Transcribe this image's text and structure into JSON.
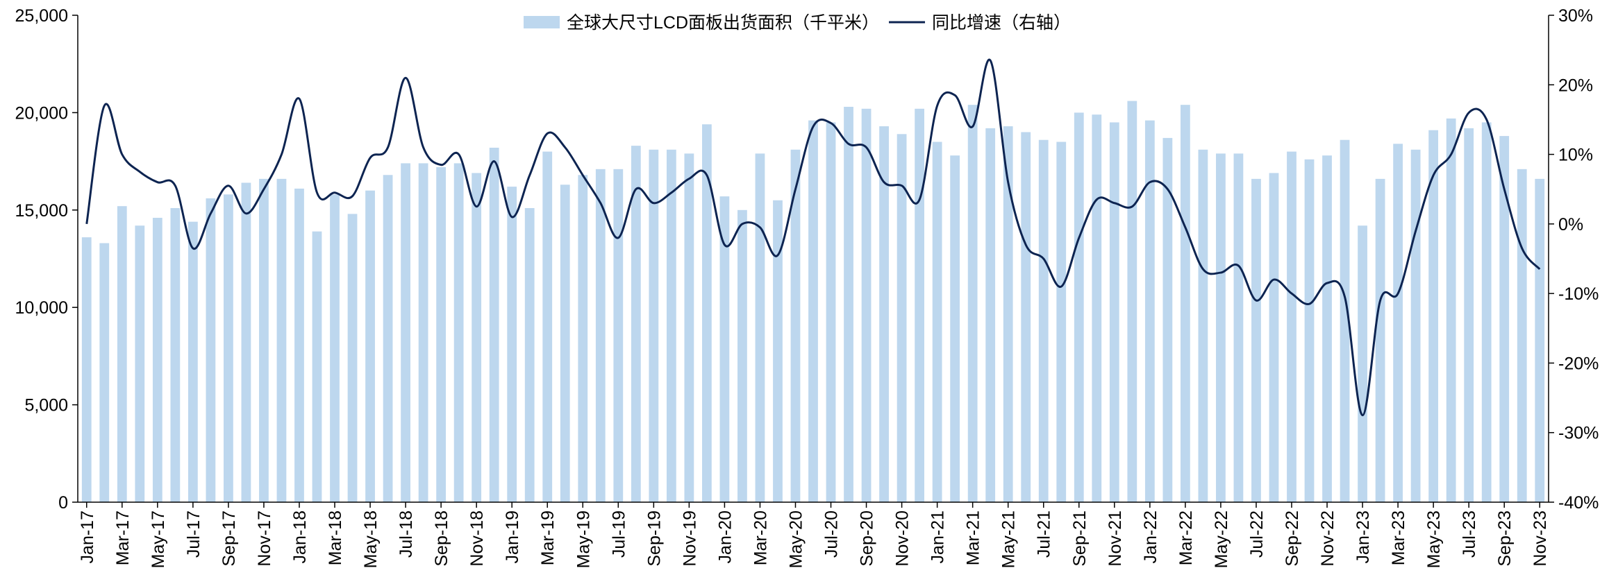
{
  "chart_data": {
    "type": "bar-line",
    "categories": [
      "Jan-17",
      null,
      "Mar-17",
      null,
      "May-17",
      null,
      "Jul-17",
      null,
      "Sep-17",
      null,
      "Nov-17",
      null,
      "Jan-18",
      null,
      "Mar-18",
      null,
      "May-18",
      null,
      "Jul-18",
      null,
      "Sep-18",
      null,
      "Nov-18",
      null,
      "Jan-19",
      null,
      "Mar-19",
      null,
      "May-19",
      null,
      "Jul-19",
      null,
      "Sep-19",
      null,
      "Nov-19",
      null,
      "Jan-20",
      null,
      "Mar-20",
      null,
      "May-20",
      null,
      "Jul-20",
      null,
      "Sep-20",
      null,
      "Nov-20",
      null,
      "Jan-21",
      null,
      "Mar-21",
      null,
      "May-21",
      null,
      "Jul-21",
      null,
      "Sep-21",
      null,
      "Nov-21",
      null,
      "Jan-22",
      null,
      "Mar-22",
      null,
      "May-22",
      null,
      "Jul-22",
      null,
      "Sep-22",
      null,
      "Nov-22",
      null,
      "Jan-23",
      null,
      "Mar-23",
      null,
      "May-23",
      null,
      "Jul-23",
      null,
      "Sep-23",
      null,
      "Nov-23"
    ],
    "series": [
      {
        "name": "全球大尺寸LCD面板出货面积（千平米）",
        "type": "bar",
        "color": "#bdd7ee",
        "values": [
          13600,
          13300,
          15200,
          14200,
          14600,
          15100,
          14400,
          15600,
          15800,
          16400,
          16600,
          16600,
          16100,
          13900,
          15800,
          14800,
          16000,
          16800,
          17400,
          17400,
          17200,
          17400,
          16900,
          18200,
          16200,
          15100,
          18000,
          16300,
          16800,
          17100,
          17100,
          18300,
          18100,
          18100,
          17900,
          19400,
          15700,
          15000,
          17900,
          15500,
          18100,
          19600,
          19500,
          20300,
          20200,
          19300,
          18900,
          20200,
          18500,
          17800,
          20400,
          19200,
          19300,
          19000,
          18600,
          18500,
          20000,
          19900,
          19500,
          20600,
          19600,
          18700,
          20400,
          18100,
          17900,
          17900,
          16600,
          16900,
          18000,
          17600,
          17800,
          18600,
          14200,
          16600,
          18400,
          18100,
          19100,
          19700,
          19200,
          19500,
          18800,
          17100,
          16600
        ]
      },
      {
        "name": "同比增速（右轴）",
        "type": "line",
        "axis": "y2",
        "color": "#0d2451",
        "values": [
          0,
          17,
          10,
          7.5,
          6,
          5.5,
          -3.5,
          1.5,
          5.5,
          1.5,
          5,
          10,
          18,
          4.5,
          4.5,
          4,
          9.5,
          11,
          21,
          11,
          8.5,
          10,
          2.5,
          9,
          1,
          7,
          13,
          11,
          7,
          3,
          -2,
          5,
          3,
          4.5,
          6.5,
          7,
          -3,
          0,
          -0.5,
          -4.5,
          5,
          14,
          14.5,
          11.5,
          11,
          6,
          5.5,
          3.5,
          17,
          18.5,
          14,
          23.5,
          6,
          -3,
          -5,
          -9,
          -2,
          3.5,
          3,
          2.5,
          6,
          5,
          -0.5,
          -6.5,
          -7,
          -6,
          -11,
          -8,
          -10,
          -11.5,
          -8.5,
          -10.5,
          -27.5,
          -11,
          -10,
          -1,
          7,
          10,
          16,
          15,
          5,
          -3.5,
          -6.5
        ]
      }
    ],
    "ylim": [
      0,
      25000
    ],
    "yticks": [
      0,
      {
        "value": 5000,
        "label": "5,000"
      },
      {
        "value": 10000,
        "label": "10,000"
      },
      {
        "value": 15000,
        "label": "15,000"
      },
      {
        "value": 20000,
        "label": "20,000"
      },
      {
        "value": 25000,
        "label": "25,000"
      }
    ],
    "y2lim": [
      -40,
      30
    ],
    "y2ticks": [
      {
        "value": -40,
        "label": "-40%"
      },
      {
        "value": -30,
        "label": "-30%"
      },
      {
        "value": -20,
        "label": "-20%"
      },
      {
        "value": -10,
        "label": "-10%"
      },
      {
        "value": 0,
        "label": "0%"
      },
      {
        "value": 10,
        "label": "10%"
      },
      {
        "value": 20,
        "label": "20%"
      },
      {
        "value": 30,
        "label": "30%"
      }
    ],
    "legend": "top",
    "grid": false
  }
}
